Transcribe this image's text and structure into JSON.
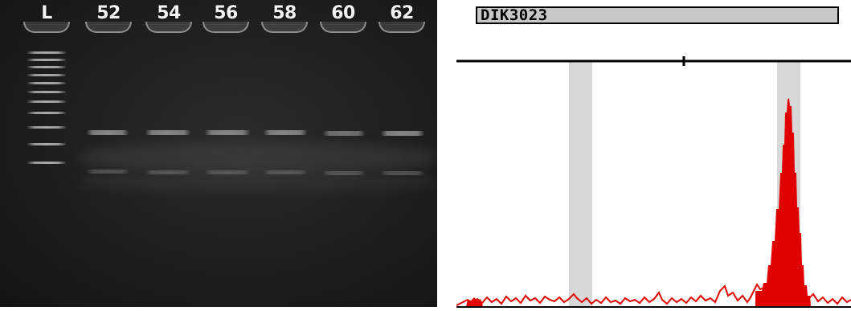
{
  "gel": {
    "lanes": [
      {
        "label": "L"
      },
      {
        "label": "52"
      },
      {
        "label": "54"
      },
      {
        "label": "56"
      },
      {
        "label": "58"
      },
      {
        "label": "60"
      },
      {
        "label": "62"
      }
    ],
    "background_color": "#1e1e1e",
    "band_color": "#858585"
  },
  "electropherogram": {
    "marker_name": "DIK3023",
    "trace_color": "#e00000",
    "bin_color": "#d8d8d8"
  }
}
